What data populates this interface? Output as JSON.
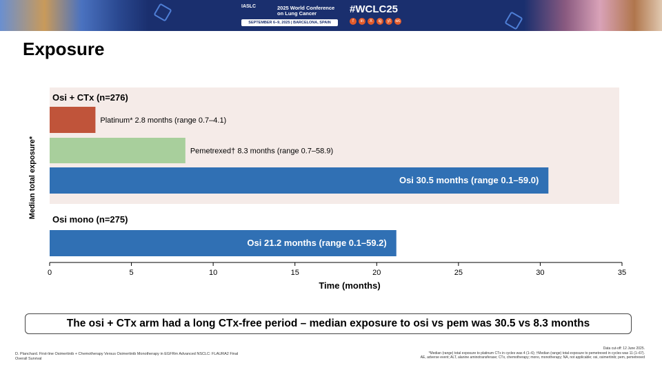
{
  "banner": {
    "org": "IASLC",
    "conference": "2025 World Conference on Lung Cancer",
    "date_location": "SEPTEMBER 6–9, 2025 | BARCELONA, SPAIN",
    "hashtag": "#WCLC25",
    "socials": [
      "f",
      "in",
      "X",
      "ig",
      "yt",
      "wc"
    ],
    "accent": "#1a2f6e"
  },
  "slide": {
    "title": "Exposure",
    "conclusion": "The osi + CTx arm had a long CTx-free period – median exposure to osi vs pem was 30.5 vs 8.3 months"
  },
  "footer": {
    "citation": "D. Planchard. First-line Osimertinib + Chemotherapy Versus Osimertinib Monotherapy in EGFRm Advanced NSCLC: FLAURA2 Final Overall Survival",
    "cutoff": "Data cut-off: 12 June 2025.",
    "footnote": "*Median (range) total exposure to platinum CTx in cycles was 4 (1–6); †Median (range) total exposure to pemetrexed in cycles was 11 (1–67).",
    "abbreviations": "AE, adverse event; ALT, alanine aminotransferase; CTx, chemotherapy; mono, monotherapy; NA, not applicable; osi, osimertinib; pem, pemetrexed"
  },
  "chart_data": {
    "type": "bar",
    "orientation": "horizontal",
    "xlabel": "Time (months)",
    "ylabel": "Median total exposure*",
    "xlim": [
      0,
      35
    ],
    "xticks": [
      0,
      5,
      10,
      15,
      20,
      25,
      30,
      35
    ],
    "groups": [
      {
        "name": "Osi + CTx (n=276)",
        "background": "#f5ebe8",
        "bars": [
          {
            "name": "Platinum",
            "value": 2.8,
            "color": "#c0543a",
            "label_bold": false,
            "label_inside": false,
            "label_prefix": "Platinum*",
            "label_text": "2.8 months (range 0.7–4.1)"
          },
          {
            "name": "Pemetrexed",
            "value": 8.3,
            "color": "#a8cf9c",
            "label_bold": false,
            "label_inside": false,
            "label_prefix": "Pemetrexed†",
            "label_text": "8.3 months (range 0.7–58.9)"
          },
          {
            "name": "Osi",
            "value": 30.5,
            "color": "#3070b4",
            "label_bold": true,
            "label_inside": true,
            "label_prefix": "",
            "label_text": "Osi 30.5 months (range 0.1–59.0)"
          }
        ]
      },
      {
        "name": "Osi mono (n=275)",
        "background": "#ffffff",
        "bars": [
          {
            "name": "Osi",
            "value": 21.2,
            "color": "#3070b4",
            "label_bold": true,
            "label_inside": true,
            "label_prefix": "",
            "label_text": "Osi 21.2 months (range 0.1–59.2)"
          }
        ]
      }
    ]
  }
}
